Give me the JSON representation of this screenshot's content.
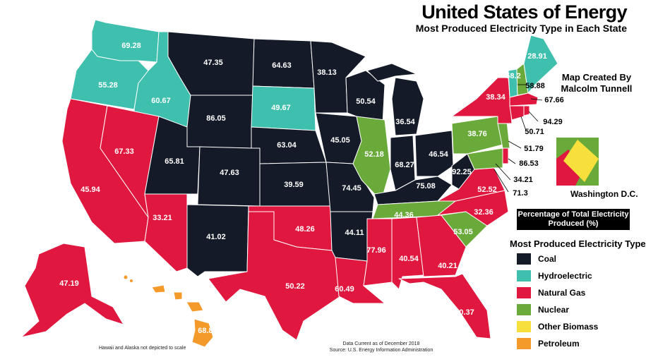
{
  "title": "United States of Energy",
  "subtitle": "Most Produced Electricity Type in Each State",
  "credit_line1": "Map Created By",
  "credit_line2": "Malcolm Tunnell",
  "dc_caption": "Washington D.C.",
  "percent_box": "Percentage of Total Electricity Produced (%)",
  "legend_title": "Most Produced Electricity Type",
  "legend": [
    {
      "label": "Coal",
      "color": "#141a28"
    },
    {
      "label": "Hydroelectric",
      "color": "#3fbfad"
    },
    {
      "label": "Natural Gas",
      "color": "#e0173e"
    },
    {
      "label": "Nuclear",
      "color": "#6aaa3a"
    },
    {
      "label": "Other Biomass",
      "color": "#f7e03c"
    },
    {
      "label": "Petroleum",
      "color": "#f39a2b"
    }
  ],
  "note_scale": "Hawaii and Alaska not depicted to scale",
  "note_date": "Data Current as of December 2018",
  "note_source": "Source: U.S. Energy Information Administration",
  "states": [
    {
      "id": "WA",
      "type": "Hydroelectric",
      "value": "69.28"
    },
    {
      "id": "OR",
      "type": "Hydroelectric",
      "value": "55.28"
    },
    {
      "id": "ID",
      "type": "Hydroelectric",
      "value": "60.67"
    },
    {
      "id": "MT",
      "type": "Coal",
      "value": "47.35"
    },
    {
      "id": "ND",
      "type": "Coal",
      "value": "64.63"
    },
    {
      "id": "MN",
      "type": "Coal",
      "value": "38.13"
    },
    {
      "id": "WI",
      "type": "Coal",
      "value": "50.54"
    },
    {
      "id": "MI",
      "type": "Coal",
      "value": "36.54"
    },
    {
      "id": "SD",
      "type": "Hydroelectric",
      "value": "49.67"
    },
    {
      "id": "WY",
      "type": "Coal",
      "value": "86.05"
    },
    {
      "id": "NE",
      "type": "Coal",
      "value": "63.04"
    },
    {
      "id": "IA",
      "type": "Coal",
      "value": "45.05"
    },
    {
      "id": "IL",
      "type": "Nuclear",
      "value": "52.18"
    },
    {
      "id": "IN",
      "type": "Coal",
      "value": "68.27"
    },
    {
      "id": "OH",
      "type": "Coal",
      "value": "46.54"
    },
    {
      "id": "NV",
      "type": "Natural Gas",
      "value": "67.33"
    },
    {
      "id": "UT",
      "type": "Coal",
      "value": "65.81"
    },
    {
      "id": "CO",
      "type": "Coal",
      "value": "47.63"
    },
    {
      "id": "KS",
      "type": "Coal",
      "value": "39.59"
    },
    {
      "id": "MO",
      "type": "Coal",
      "value": "74.45"
    },
    {
      "id": "KY",
      "type": "Coal",
      "value": "75.08"
    },
    {
      "id": "WV",
      "type": "Coal",
      "value": "92.25"
    },
    {
      "id": "CA",
      "type": "Natural Gas",
      "value": "45.94"
    },
    {
      "id": "AZ",
      "type": "Natural Gas",
      "value": "33.21"
    },
    {
      "id": "NM",
      "type": "Coal",
      "value": "41.02"
    },
    {
      "id": "OK",
      "type": "Natural Gas",
      "value": "48.26"
    },
    {
      "id": "AR",
      "type": "Coal",
      "value": "44.11"
    },
    {
      "id": "TN",
      "type": "Nuclear",
      "value": "44.36"
    },
    {
      "id": "VA",
      "type": "Natural Gas",
      "value": "52.52"
    },
    {
      "id": "NC",
      "type": "Natural Gas",
      "value": "32.36"
    },
    {
      "id": "SC",
      "type": "Nuclear",
      "value": "53.05"
    },
    {
      "id": "TX",
      "type": "Natural Gas",
      "value": "50.22"
    },
    {
      "id": "LA",
      "type": "Natural Gas",
      "value": "60.49"
    },
    {
      "id": "MS",
      "type": "Natural Gas",
      "value": "77.96"
    },
    {
      "id": "AL",
      "type": "Natural Gas",
      "value": "40.54"
    },
    {
      "id": "GA",
      "type": "Natural Gas",
      "value": "40.21"
    },
    {
      "id": "FL",
      "type": "Natural Gas",
      "value": "70.37"
    },
    {
      "id": "PA",
      "type": "Nuclear",
      "value": "38.76"
    },
    {
      "id": "NY",
      "type": "Natural Gas",
      "value": "38.34"
    },
    {
      "id": "VT",
      "type": "Hydroelectric",
      "value": "58.2"
    },
    {
      "id": "ME",
      "type": "Hydroelectric",
      "value": "28.91"
    },
    {
      "id": "NH",
      "type": "Nuclear",
      "value": "58.88"
    },
    {
      "id": "MA",
      "type": "Natural Gas",
      "value": "67.66"
    },
    {
      "id": "RI",
      "type": "Natural Gas",
      "value": "94.29"
    },
    {
      "id": "CT",
      "type": "Natural Gas",
      "value": "50.71"
    },
    {
      "id": "NJ",
      "type": "Nuclear",
      "value": "51.79"
    },
    {
      "id": "DE",
      "type": "Natural Gas",
      "value": "86.53"
    },
    {
      "id": "MD",
      "type": "Nuclear",
      "value": "34.21"
    },
    {
      "id": "DC",
      "type": "Natural Gas",
      "value": "71.3"
    },
    {
      "id": "AK",
      "type": "Natural Gas",
      "value": "47.19"
    },
    {
      "id": "HI",
      "type": "Petroleum",
      "value": "68.89"
    }
  ],
  "dc_inset": {
    "primary": "Natural Gas",
    "secondary": "Other Biomass",
    "frame": "Nuclear"
  }
}
